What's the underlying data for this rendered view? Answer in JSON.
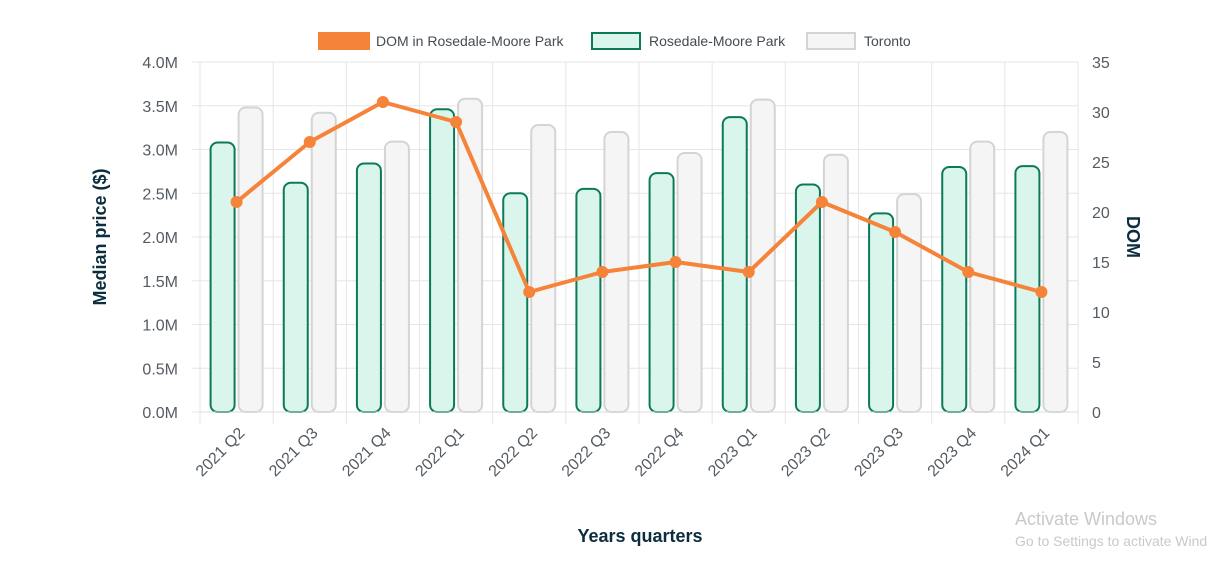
{
  "chart_data": {
    "type": "bar",
    "categories": [
      "2021 Q2",
      "2021 Q3",
      "2021 Q4",
      "2022 Q1",
      "2022 Q2",
      "2022 Q3",
      "2022 Q4",
      "2023 Q1",
      "2023 Q2",
      "2023 Q3",
      "2023 Q4",
      "2024 Q1"
    ],
    "series": [
      {
        "name": "DOM in Rosedale-Moore Park",
        "type": "line",
        "axis": "right",
        "color": "#f5843a",
        "values": [
          21,
          27,
          31,
          29,
          12,
          14,
          15,
          14,
          21,
          18,
          14,
          12
        ]
      },
      {
        "name": "Rosedale-Moore Park",
        "type": "bar",
        "axis": "left",
        "color": "#0b7a5a",
        "fill": "#daf5ec",
        "values": [
          3.08,
          2.62,
          2.84,
          3.46,
          2.5,
          2.55,
          2.73,
          3.37,
          2.6,
          2.27,
          2.8,
          2.81
        ]
      },
      {
        "name": "Toronto",
        "type": "bar",
        "axis": "left",
        "color": "#d4d4d4",
        "fill": "#f5f5f5",
        "values": [
          3.48,
          3.42,
          3.09,
          3.58,
          3.28,
          3.2,
          2.96,
          3.57,
          2.94,
          2.49,
          3.09,
          3.2
        ]
      }
    ],
    "xlabel": "Years quarters",
    "ylabel": "Median price ($)",
    "y2label": "DOM",
    "ylim": [
      0,
      4
    ],
    "y2lim": [
      0,
      35
    ],
    "yticks": [
      "0.0M",
      "0.5M",
      "1.0M",
      "1.5M",
      "2.0M",
      "2.5M",
      "3.0M",
      "3.5M",
      "4.0M"
    ],
    "y2ticks": [
      "0",
      "5",
      "10",
      "15",
      "20",
      "25",
      "30",
      "35"
    ],
    "grid": true,
    "legend_position": "top"
  },
  "watermark": {
    "title": "Activate Windows",
    "subtitle": "Go to Settings to activate Windows."
  }
}
